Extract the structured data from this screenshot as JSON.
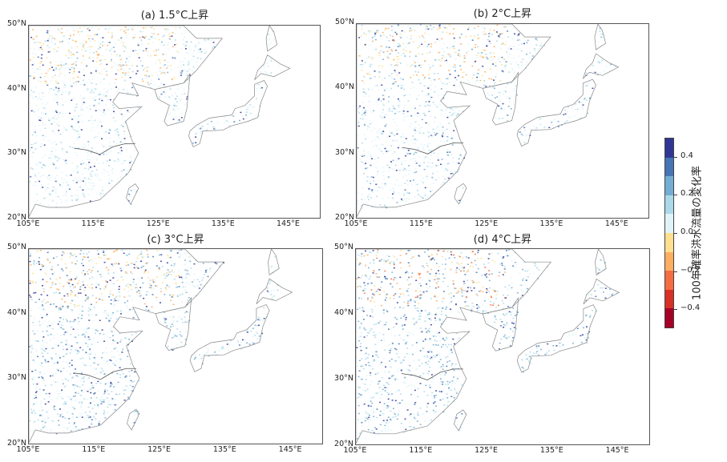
{
  "chart_data": [
    {
      "type": "heatmap",
      "title": "(a) 1.5°C上昇",
      "xlabel": "",
      "ylabel": "",
      "xticks": [
        "105°E",
        "115°E",
        "125°E",
        "135°E",
        "145°E"
      ],
      "yticks": [
        "50°N",
        "40°N",
        "30°N",
        "20°N"
      ],
      "xlim": [
        105,
        150
      ],
      "ylim": [
        20,
        50
      ],
      "description": "River-network map of East Asia; mostly near-zero (pale green/yellow) with scattered light-blue increases in N. China/Korea and yellow decreases in N. China."
    },
    {
      "type": "heatmap",
      "title": "(b) 2°C上昇",
      "xticks": [
        "105°E",
        "115°E",
        "125°E",
        "135°E",
        "145°E"
      ],
      "yticks": [
        "50°N",
        "40°N",
        "30°N",
        "20°N"
      ],
      "xlim": [
        105,
        150
      ],
      "ylim": [
        20,
        50
      ],
      "description": "Similar to (a) with somewhat more light-blue increases across S. China, Korea and Japan."
    },
    {
      "type": "heatmap",
      "title": "(c) 3°C上昇",
      "xticks": [
        "105°E",
        "115°E",
        "125°E",
        "135°E",
        "145°E"
      ],
      "yticks": [
        "50°N",
        "40°N",
        "30°N",
        "20°N"
      ],
      "xlim": [
        105,
        150
      ],
      "ylim": [
        20,
        50
      ],
      "description": "Widespread blue increases (0.1-0.4) across China, Korea, Japan; few yellow decreases in the north."
    },
    {
      "type": "heatmap",
      "title": "(d) 4°C上昇",
      "xticks": [
        "105°E",
        "115°E",
        "125°E",
        "135°E",
        "145°E"
      ],
      "yticks": [
        "50°N",
        "40°N",
        "30°N",
        "20°N"
      ],
      "xlim": [
        105,
        150
      ],
      "ylim": [
        20,
        50
      ],
      "description": "Strongest increases (dark blue >0.4) widely across China, Korea, Japan; orange/red decreases in far north."
    }
  ],
  "colorbar": {
    "label": "100年確率洪水流量の変化率",
    "ticks": [
      "0.4",
      "0.2",
      "0.0",
      "−0.2",
      "−0.4"
    ],
    "range": [
      -0.5,
      0.5
    ],
    "colors": [
      "#313695",
      "#4575b4",
      "#74add1",
      "#abd9e9",
      "#e0f3f8",
      "#fee090",
      "#fdae61",
      "#f46d43",
      "#d73027",
      "#a50026"
    ]
  },
  "panels": [
    {
      "title": "(a) 1.5°C上昇"
    },
    {
      "title": "(b) 2°C上昇"
    },
    {
      "title": "(c) 3°C上昇"
    },
    {
      "title": "(d) 4°C上昇"
    }
  ],
  "axes": {
    "x": [
      "105°E",
      "115°E",
      "125°E",
      "135°E",
      "145°E"
    ],
    "y": [
      "50°N",
      "40°N",
      "30°N",
      "20°N"
    ]
  }
}
